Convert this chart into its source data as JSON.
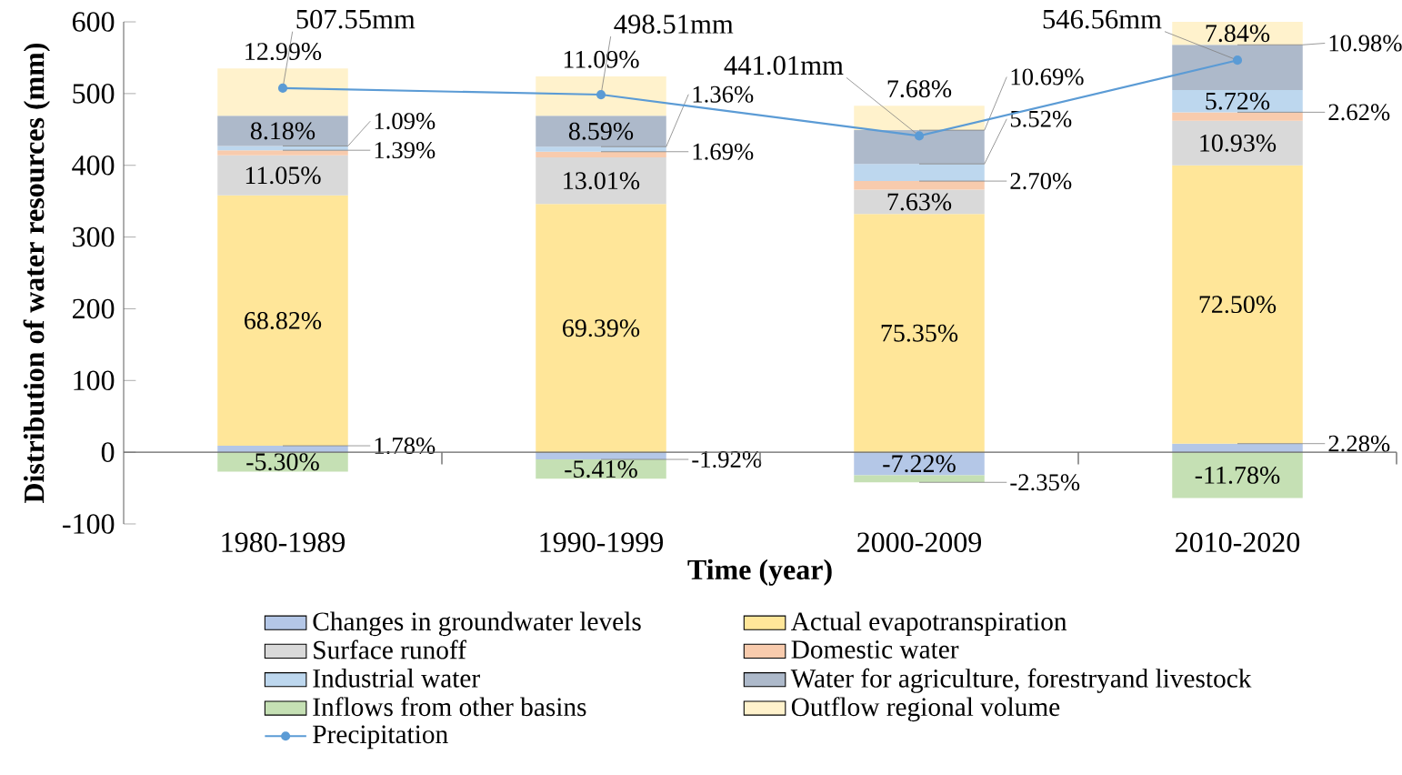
{
  "chart_data": {
    "type": "bar",
    "stacked": true,
    "xlabel": "Time (year)",
    "ylabel": "Distribution of water resources (mm)",
    "categories": [
      "1980-1989",
      "1990-1999",
      "2000-2009",
      "2010-2020"
    ],
    "ylim": [
      -100,
      600
    ],
    "yticks": [
      -100,
      0,
      100,
      200,
      300,
      400,
      500,
      600
    ],
    "legend": "bottom",
    "series": [
      {
        "name": "Changes in groundwater levels",
        "color": "#b4c7e7",
        "values": [
          9,
          -10,
          -32,
          12
        ]
      },
      {
        "name": "Actual evapotranspiration",
        "color": "#ffe699",
        "values": [
          349,
          346,
          332,
          388
        ]
      },
      {
        "name": "Surface runoff",
        "color": "#d9d9d9",
        "values": [
          56,
          65,
          34,
          62
        ]
      },
      {
        "name": "Domestic water",
        "color": "#f8cbad",
        "values": [
          7,
          8,
          12,
          12
        ]
      },
      {
        "name": "Industrial water",
        "color": "#bdd7ee",
        "values": [
          6,
          7,
          24,
          31
        ]
      },
      {
        "name": "Water for agriculture, forestryand livestock",
        "color": "#adb9ca",
        "values": [
          42,
          43,
          47,
          63
        ]
      },
      {
        "name": "Inflows from other basins",
        "color": "#c5e0b4",
        "values": [
          -27,
          -27,
          -10,
          -64
        ]
      },
      {
        "name": "Outflow regional volume",
        "color": "#fff2cc",
        "values": [
          66,
          55,
          34,
          32
        ]
      },
      {
        "name": "Precipitation",
        "type": "line",
        "color": "#5b9bd5",
        "marker": "circle",
        "values": [
          507.55,
          498.51,
          441.01,
          546.56
        ],
        "value_labels": [
          "507.55mm",
          "498.51mm",
          "441.01mm",
          "546.56mm"
        ]
      }
    ],
    "annotations": [
      {
        "text": "1.78%",
        "x": "1980-1989",
        "y": 9
      },
      "68.82%",
      "11.05%",
      {
        "text": "1.39%",
        "x": "1980-1989",
        "y": 421
      },
      {
        "text": "1.09%",
        "x": "1980-1989",
        "y": 427
      },
      "8.18%",
      "-5.30%",
      "12.99%",
      {
        "text": "-1.92%",
        "x": "1990-1999",
        "y": -10
      },
      "69.39%",
      "13.01%",
      {
        "text": "1.69%",
        "x": "1990-1999",
        "y": 419
      },
      {
        "text": "1.36%",
        "x": "1990-1999",
        "y": 426
      },
      "8.59%",
      "-5.41%",
      "11.09%",
      "-7.22%",
      "75.35%",
      "7.63%",
      {
        "text": "2.70%",
        "x": "2000-2009",
        "y": 378
      },
      {
        "text": "5.52%",
        "x": "2000-2009",
        "y": 402
      },
      {
        "text": "10.69%",
        "x": "2000-2009",
        "y": 449
      },
      {
        "text": "-2.35%",
        "x": "2000-2009",
        "y": -42
      },
      "7.68%",
      {
        "text": "2.28%",
        "x": "2010-2020",
        "y": 12
      },
      "72.50%",
      "10.93%",
      {
        "text": "2.62%",
        "x": "2010-2020",
        "y": 474
      },
      "5.72%",
      {
        "text": "10.98%",
        "x": "2010-2020",
        "y": 568
      },
      "-11.78%",
      "7.84%"
    ]
  }
}
